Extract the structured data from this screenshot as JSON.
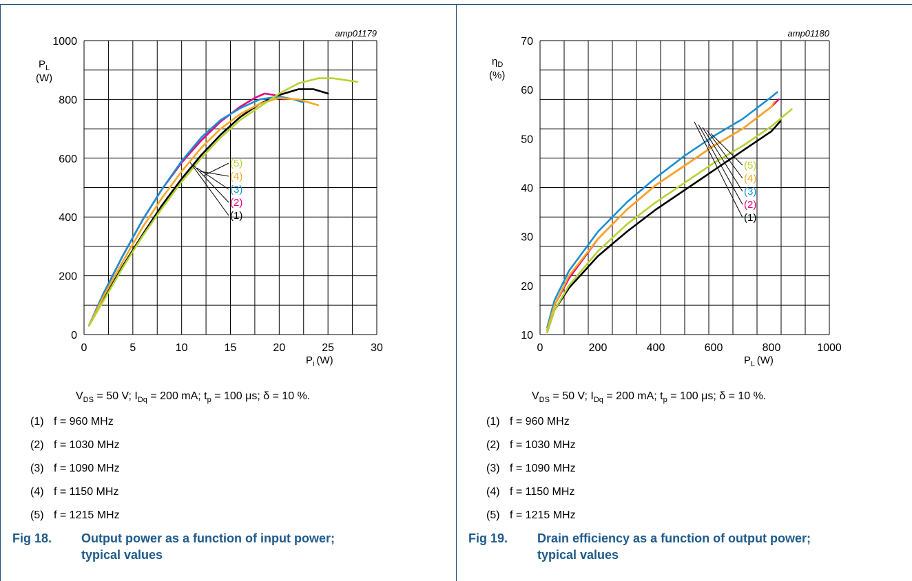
{
  "colors": {
    "s1": "#000000",
    "s2": "#e6007e",
    "s3": "#1a8fd0",
    "s4": "#f7a823",
    "s5": "#b6d332",
    "caption": "#1e5a8c",
    "frame": "#1f4e79"
  },
  "conditions": {
    "vds_label": "V",
    "vds_sub": "DS",
    "vds_value": " = 50 V; I",
    "idq_sub": "Dq",
    "idq_value": " = 200 mA; t",
    "tp_sub": "p",
    "tp_value": " = 100 μs; δ = 10 %."
  },
  "notes": [
    {
      "num": "(1)",
      "text": "f = 960 MHz"
    },
    {
      "num": "(2)",
      "text": "f = 1030 MHz"
    },
    {
      "num": "(3)",
      "text": "f = 1090 MHz"
    },
    {
      "num": "(4)",
      "text": "f = 1150 MHz"
    },
    {
      "num": "(5)",
      "text": "f = 1215 MHz"
    }
  ],
  "fig18": {
    "num": "Fig 18.",
    "title": "Output power as a function of input power; typical values"
  },
  "fig19": {
    "num": "Fig 19.",
    "title": "Drain efficiency as a function of output power; typical values"
  },
  "chart_data": [
    {
      "type": "line",
      "id": "amp01179",
      "xlabel": "P_i (W)",
      "ylabel": "P_L (W)",
      "xlim": [
        0,
        30
      ],
      "ylim": [
        0,
        1000
      ],
      "xticks": [
        0,
        5,
        10,
        15,
        20,
        25,
        30
      ],
      "yticks": [
        0,
        200,
        400,
        600,
        800,
        1000
      ],
      "grid": true,
      "curve_labels": [
        "(5)",
        "(4)",
        "(3)",
        "(2)",
        "(1)"
      ],
      "series": [
        {
          "name": "(1)",
          "color": "#000000",
          "x": [
            0.5,
            2,
            4,
            6,
            8,
            10,
            12,
            14,
            16,
            18,
            20,
            22,
            23.5,
            25
          ],
          "y": [
            30,
            120,
            235,
            340,
            440,
            530,
            610,
            680,
            740,
            785,
            815,
            835,
            835,
            820
          ]
        },
        {
          "name": "(2)",
          "color": "#e6007e",
          "x": [
            0.5,
            2,
            4,
            6,
            8,
            10,
            12,
            14,
            16,
            17.5,
            18.5,
            19.5,
            20.5
          ],
          "y": [
            30,
            140,
            270,
            390,
            495,
            585,
            660,
            725,
            775,
            805,
            820,
            815,
            800
          ]
        },
        {
          "name": "(3)",
          "color": "#1a8fd0",
          "x": [
            0.5,
            2,
            4,
            6,
            8,
            10,
            12,
            14,
            16,
            18,
            20,
            21.5,
            22.5
          ],
          "y": [
            30,
            140,
            270,
            390,
            495,
            590,
            670,
            730,
            770,
            800,
            810,
            800,
            790
          ]
        },
        {
          "name": "(4)",
          "color": "#f7a823",
          "x": [
            0.5,
            2,
            4,
            6,
            8,
            10,
            12,
            14,
            16,
            18,
            20,
            22,
            24
          ],
          "y": [
            30,
            130,
            250,
            365,
            465,
            555,
            635,
            700,
            750,
            785,
            805,
            800,
            780
          ]
        },
        {
          "name": "(5)",
          "color": "#b6d332",
          "x": [
            0.5,
            2,
            4,
            6,
            8,
            10,
            12,
            14,
            16,
            18,
            20,
            22,
            24,
            25.5,
            28
          ],
          "y": [
            30,
            115,
            230,
            335,
            430,
            520,
            600,
            670,
            730,
            775,
            820,
            855,
            872,
            872,
            860
          ]
        }
      ]
    },
    {
      "type": "line",
      "id": "amp01180",
      "xlabel": "P_L (W)",
      "ylabel": "ηD (%)",
      "xlim": [
        0,
        1000
      ],
      "ylim": [
        10,
        70
      ],
      "xticks": [
        0,
        200,
        400,
        600,
        800,
        1000
      ],
      "yticks": [
        10,
        20,
        30,
        40,
        50,
        60,
        70
      ],
      "grid": true,
      "curve_labels": [
        "(5)",
        "(4)",
        "(3)",
        "(2)",
        "(1)"
      ],
      "series": [
        {
          "name": "(1)",
          "color": "#000000",
          "x": [
            25,
            50,
            100,
            200,
            300,
            400,
            500,
            600,
            700,
            800,
            830
          ],
          "y": [
            10.5,
            15,
            19.5,
            26,
            31,
            35.5,
            39.5,
            43.5,
            47.5,
            51.5,
            53.5
          ]
        },
        {
          "name": "(2)",
          "color": "#e6007e",
          "x": [
            25,
            50,
            100,
            200,
            300,
            400,
            500,
            600,
            700,
            800,
            825
          ],
          "y": [
            11,
            16,
            21.5,
            29.5,
            35.5,
            40.5,
            44.5,
            48.5,
            52,
            56.5,
            58
          ]
        },
        {
          "name": "(3)",
          "color": "#1a8fd0",
          "x": [
            25,
            50,
            100,
            200,
            300,
            400,
            500,
            600,
            700,
            800,
            820
          ],
          "y": [
            11.5,
            17,
            23,
            31,
            37,
            42,
            46.5,
            50.5,
            54,
            58.5,
            59.5
          ]
        },
        {
          "name": "(4)",
          "color": "#f7a823",
          "x": [
            25,
            50,
            100,
            200,
            300,
            400,
            500,
            600,
            700,
            800,
            810
          ],
          "y": [
            11,
            16,
            22,
            29.5,
            35.5,
            40.5,
            44.5,
            48.5,
            52,
            56.5,
            57.5
          ]
        },
        {
          "name": "(5)",
          "color": "#b6d332",
          "x": [
            25,
            50,
            100,
            200,
            300,
            400,
            500,
            600,
            700,
            800,
            870
          ],
          "y": [
            10.5,
            15,
            20,
            27,
            32.5,
            37,
            41,
            45,
            48.5,
            52.5,
            56
          ]
        }
      ]
    }
  ]
}
